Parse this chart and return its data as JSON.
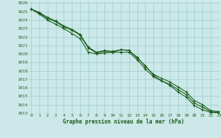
{
  "title": "Graphe pression niveau de la mer (hPa)",
  "bg_color": "#cce8e8",
  "grid_color": "#99cccc",
  "line_color": "#1a5c1a",
  "xlim": [
    -0.3,
    23
  ],
  "ylim": [
    1013,
    1026.2
  ],
  "xticks": [
    0,
    1,
    2,
    3,
    4,
    5,
    6,
    7,
    8,
    9,
    10,
    11,
    12,
    13,
    14,
    15,
    16,
    17,
    18,
    19,
    20,
    21,
    22,
    23
  ],
  "yticks": [
    1013,
    1014,
    1015,
    1016,
    1017,
    1018,
    1019,
    1020,
    1021,
    1022,
    1023,
    1024,
    1025,
    1026
  ],
  "series": [
    [
      1025.3,
      1024.8,
      1024.2,
      1023.8,
      1023.2,
      1022.8,
      1022.2,
      1020.7,
      1020.1,
      1020.3,
      1020.2,
      1020.2,
      1020.2,
      1019.3,
      1018.2,
      1017.3,
      1016.8,
      1016.4,
      1015.8,
      1015.2,
      1014.2,
      1013.7,
      1013.2,
      1013.1
    ],
    [
      1025.3,
      1024.7,
      1024.0,
      1023.5,
      1023.0,
      1022.4,
      1021.8,
      1020.2,
      1020.0,
      1020.1,
      1020.2,
      1020.5,
      1020.4,
      1019.5,
      1018.6,
      1017.5,
      1016.8,
      1016.3,
      1015.5,
      1014.9,
      1013.9,
      1013.4,
      1013.1,
      1013.0
    ],
    [
      1025.3,
      1024.9,
      1024.3,
      1023.9,
      1023.3,
      1022.9,
      1022.3,
      1020.8,
      1020.2,
      1020.4,
      1020.3,
      1020.5,
      1020.4,
      1019.6,
      1018.5,
      1017.6,
      1017.1,
      1016.7,
      1016.1,
      1015.5,
      1014.5,
      1014.0,
      1013.3,
      1013.2
    ]
  ]
}
